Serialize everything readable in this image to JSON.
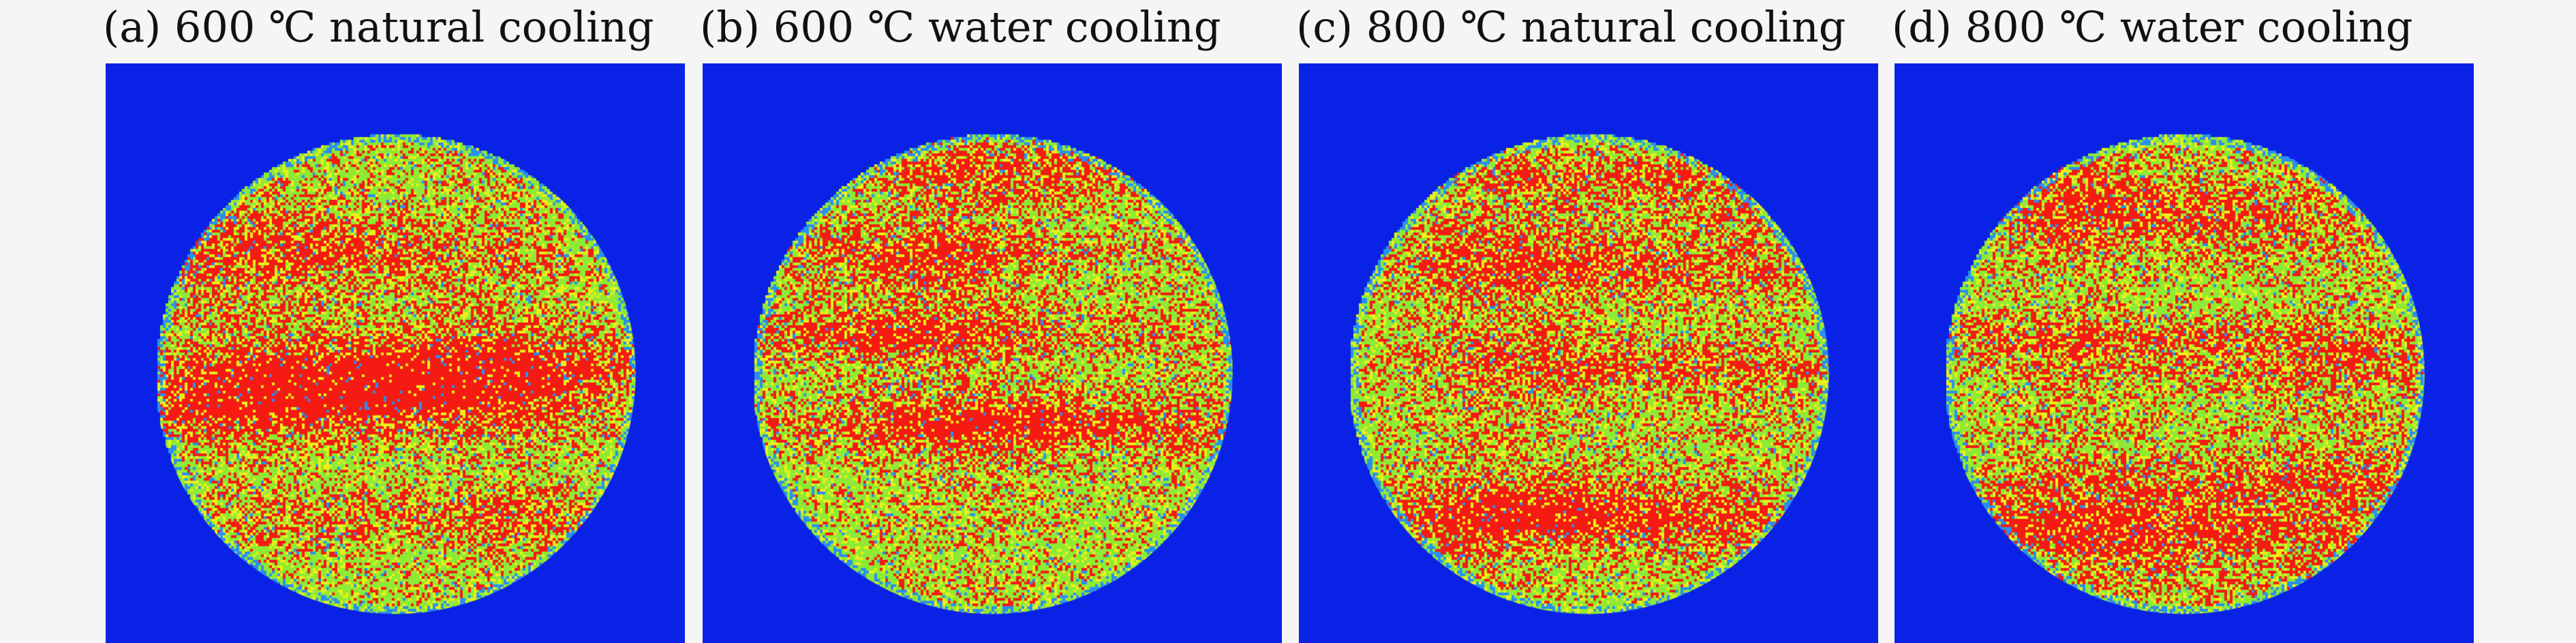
{
  "figure": {
    "panels": [
      {
        "label": "(a) 600 ℃ natural cooling",
        "colors": {
          "background": "#0a22e6",
          "high": "#f51a12",
          "mid": "#8eea34",
          "low": "#e9f118",
          "edge": "#2a8ff0"
        },
        "seed": 11
      },
      {
        "label": "(b) 600 ℃ water cooling",
        "colors": {
          "background": "#0a22e6",
          "high": "#f51a12",
          "mid": "#8eea34",
          "low": "#e9f118",
          "edge": "#2a8ff0"
        },
        "seed": 27
      },
      {
        "label": "(c) 800 ℃ natural cooling",
        "colors": {
          "background": "#0a22e6",
          "high": "#f51a12",
          "mid": "#8eea34",
          "low": "#e9f118",
          "edge": "#2a8ff0"
        },
        "seed": 41
      },
      {
        "label": "(d) 800 ℃ water cooling",
        "colors": {
          "background": "#0a22e6",
          "high": "#f51a12",
          "mid": "#8eea34",
          "low": "#e9f118",
          "edge": "#2a8ff0"
        },
        "seed": 73
      }
    ]
  }
}
